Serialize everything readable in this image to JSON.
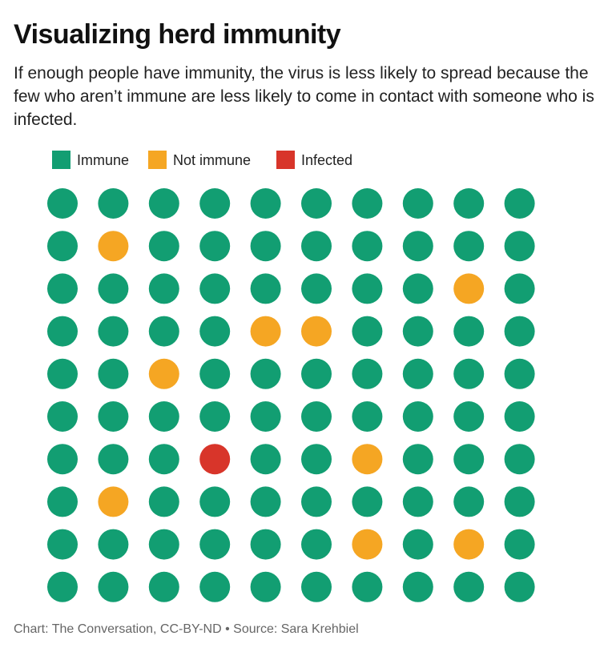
{
  "chart_data": {
    "type": "waffle",
    "title": "Visualizing herd immunity",
    "subtitle": "If enough people have immunity, the virus is less likely to spread because the few who aren’t immune are less likely to come in contact with someone who is infected.",
    "legend": [
      {
        "name": "Immune",
        "color": "#129e72"
      },
      {
        "name": "Not immune",
        "color": "#f5a623"
      },
      {
        "name": "Infected",
        "color": "#d8352a"
      }
    ],
    "cells": [
      [
        0,
        0,
        0,
        0,
        0,
        0,
        0,
        0,
        0,
        0
      ],
      [
        0,
        1,
        0,
        0,
        0,
        0,
        0,
        0,
        0,
        0
      ],
      [
        0,
        0,
        0,
        0,
        0,
        0,
        0,
        0,
        1,
        0
      ],
      [
        0,
        0,
        0,
        0,
        1,
        1,
        0,
        0,
        0,
        0
      ],
      [
        0,
        0,
        1,
        0,
        0,
        0,
        0,
        0,
        0,
        0
      ],
      [
        0,
        0,
        0,
        0,
        0,
        0,
        0,
        0,
        0,
        0
      ],
      [
        0,
        0,
        0,
        2,
        0,
        0,
        1,
        0,
        0,
        0
      ],
      [
        0,
        1,
        0,
        0,
        0,
        0,
        0,
        0,
        0,
        0
      ],
      [
        0,
        0,
        0,
        0,
        0,
        0,
        1,
        0,
        1,
        0
      ],
      [
        0,
        0,
        0,
        0,
        0,
        0,
        0,
        0,
        0,
        0
      ]
    ],
    "footer": "Chart: The Conversation, CC-BY-ND • Source: Sara Krehbiel"
  }
}
